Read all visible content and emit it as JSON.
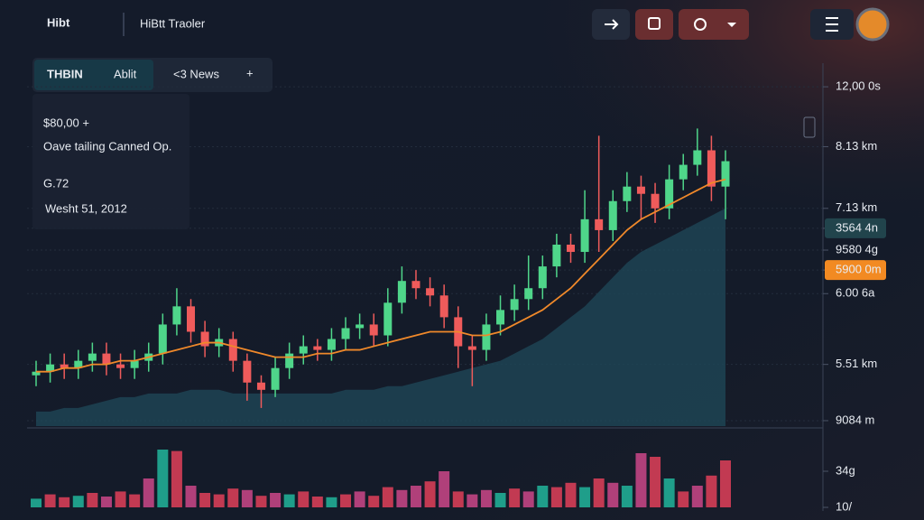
{
  "header": {
    "logo": "Hibt",
    "app_name": "HiBtt Traoler"
  },
  "tabs": [
    "THBIN",
    "Ablit",
    "<3 News",
    "+"
  ],
  "panel": {
    "price": "$80,00 +",
    "caption": "Oave tailing Canned Op.",
    "value": "G.72",
    "date": "Wesht 51, 2012"
  },
  "chart_data": {
    "type": "candlestick",
    "open": [
      14,
      15,
      17,
      16,
      18,
      20,
      17,
      16,
      18,
      20,
      28,
      33,
      26,
      22,
      24,
      18,
      12,
      10,
      16,
      20,
      22,
      21,
      24,
      27,
      28,
      25,
      34,
      40,
      38,
      36,
      30,
      22,
      21,
      28,
      32,
      35,
      38,
      44,
      50,
      48,
      57,
      54,
      62,
      66,
      64,
      60,
      68,
      72,
      76,
      66
    ],
    "high": [
      18,
      20,
      20,
      21,
      23,
      23,
      20,
      21,
      23,
      31,
      38,
      35,
      29,
      27,
      26,
      20,
      14,
      19,
      23,
      25,
      24,
      27,
      30,
      31,
      31,
      38,
      44,
      43,
      41,
      39,
      33,
      25,
      31,
      36,
      39,
      47,
      47,
      53,
      53,
      65,
      80,
      65,
      70,
      69,
      67,
      72,
      75,
      82,
      80,
      76
    ],
    "low": [
      11,
      12,
      13,
      13,
      15,
      14,
      13,
      13,
      15,
      17,
      25,
      23,
      19,
      19,
      15,
      7,
      5,
      8,
      13,
      17,
      18,
      18,
      21,
      24,
      22,
      22,
      31,
      35,
      33,
      27,
      16,
      11,
      18,
      25,
      29,
      32,
      35,
      41,
      45,
      45,
      48,
      51,
      59,
      57,
      56,
      57,
      65,
      69,
      62,
      57
    ],
    "close": [
      15,
      17,
      16,
      18,
      20,
      17,
      16,
      18,
      20,
      28,
      33,
      26,
      22,
      24,
      18,
      12,
      10,
      16,
      20,
      22,
      21,
      24,
      27,
      28,
      25,
      34,
      40,
      38,
      36,
      30,
      22,
      21,
      28,
      32,
      35,
      38,
      44,
      50,
      48,
      57,
      54,
      62,
      66,
      64,
      60,
      68,
      72,
      76,
      66,
      73
    ],
    "ma": [
      15,
      15,
      16,
      16,
      17,
      17,
      18,
      18,
      19,
      20,
      21,
      22,
      23,
      23,
      22,
      21,
      20,
      19,
      19,
      19,
      20,
      20,
      21,
      21,
      22,
      23,
      24,
      25,
      26,
      26,
      26,
      25,
      25,
      26,
      28,
      30,
      32,
      35,
      38,
      42,
      46,
      50,
      54,
      57,
      59,
      61,
      63,
      65,
      67,
      68
    ],
    "area": [
      4,
      4,
      5,
      5,
      6,
      7,
      8,
      8,
      9,
      9,
      9,
      10,
      10,
      10,
      9,
      9,
      9,
      9,
      9,
      9,
      9,
      9,
      10,
      10,
      10,
      11,
      11,
      12,
      13,
      14,
      15,
      16,
      17,
      18,
      20,
      22,
      24,
      27,
      30,
      33,
      37,
      41,
      45,
      48,
      50,
      52,
      54,
      56,
      58,
      60
    ],
    "volume": [
      12,
      18,
      14,
      16,
      20,
      15,
      22,
      18,
      40,
      80,
      78,
      30,
      20,
      18,
      26,
      24,
      16,
      20,
      18,
      22,
      15,
      14,
      18,
      22,
      16,
      28,
      24,
      30,
      36,
      50,
      22,
      18,
      24,
      20,
      26,
      22,
      30,
      28,
      34,
      28,
      40,
      34,
      30,
      75,
      70,
      40,
      22,
      30,
      44,
      65
    ],
    "ylim": [
      0,
      100
    ],
    "yticks": [
      {
        "value": 93.5,
        "label": "12,00 0s"
      },
      {
        "value": 77,
        "label": "8.13 km"
      },
      {
        "value": 60,
        "label": "7.13 km"
      },
      {
        "value": 54.5,
        "label": "3564 4n"
      },
      {
        "value": 48.5,
        "label": "9580 4g"
      },
      {
        "value": 43,
        "label": "5900 0m"
      },
      {
        "value": 36.5,
        "label": "6.00 6a"
      },
      {
        "value": 17,
        "label": "5.51 km"
      },
      {
        "value": 1.5,
        "label": "9084 m"
      }
    ],
    "highlight_ticks": {
      "3": "#21444c",
      "5": "#f28a22"
    },
    "volume_ylim": [
      0,
      100
    ],
    "volume_ticks": [
      {
        "value": 50,
        "label": "34g"
      },
      {
        "value": 0,
        "label": "10/"
      }
    ],
    "up_color": "#4fd68a",
    "down_color": "#ef5b5b",
    "ma_color": "#f0892a",
    "area_color": "#1f4a5a",
    "volume_colors": [
      "#1f9e8a",
      "#c23a52",
      "#b0407a"
    ],
    "grid": true
  }
}
